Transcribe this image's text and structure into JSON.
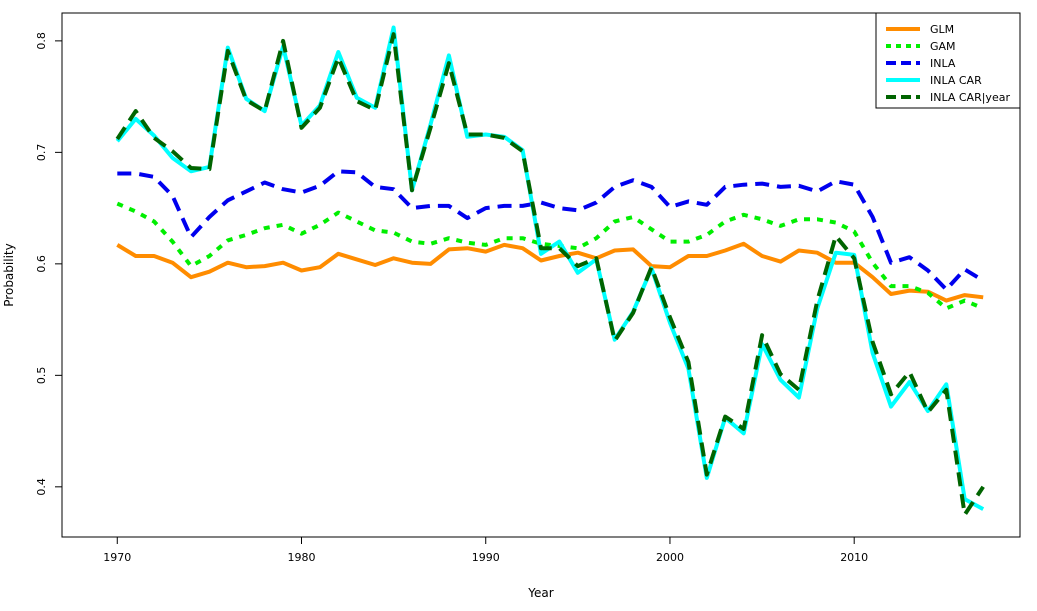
{
  "chart_data": {
    "type": "line",
    "title": "",
    "xlabel": "Year",
    "ylabel": "Probability",
    "xlim": [
      1967,
      2019
    ],
    "ylim": [
      0.355,
      0.825
    ],
    "xticks": [
      1970,
      1980,
      1990,
      2000,
      2010
    ],
    "yticks": [
      0.4,
      0.5,
      0.6,
      0.7,
      0.8
    ],
    "legend": "top-right",
    "x": [
      1970,
      1971,
      1972,
      1973,
      1974,
      1975,
      1976,
      1977,
      1978,
      1979,
      1980,
      1981,
      1982,
      1983,
      1984,
      1985,
      1986,
      1987,
      1988,
      1989,
      1990,
      1991,
      1992,
      1993,
      1994,
      1995,
      1996,
      1997,
      1998,
      1999,
      2000,
      2001,
      2002,
      2003,
      2004,
      2005,
      2006,
      2007,
      2008,
      2009,
      2010,
      2011,
      2012,
      2013,
      2014,
      2015,
      2016,
      2017
    ],
    "series": [
      {
        "name": "GLM",
        "color": "#FF8C00",
        "dash": "solid",
        "values": [
          0.617,
          0.607,
          0.607,
          0.601,
          0.588,
          0.593,
          0.601,
          0.597,
          0.598,
          0.601,
          0.594,
          0.597,
          0.609,
          0.604,
          0.599,
          0.605,
          0.601,
          0.6,
          0.613,
          0.614,
          0.611,
          0.617,
          0.614,
          0.603,
          0.607,
          0.61,
          0.605,
          0.612,
          0.613,
          0.598,
          0.597,
          0.607,
          0.607,
          0.612,
          0.618,
          0.607,
          0.602,
          0.612,
          0.61,
          0.601,
          0.601,
          0.588,
          0.573,
          0.576,
          0.575,
          0.567,
          0.572,
          0.57
        ]
      },
      {
        "name": "GAM",
        "color": "#00EE00",
        "dash": "dotted",
        "values": [
          0.654,
          0.647,
          0.638,
          0.62,
          0.598,
          0.607,
          0.621,
          0.626,
          0.632,
          0.635,
          0.627,
          0.635,
          0.646,
          0.638,
          0.63,
          0.628,
          0.62,
          0.618,
          0.623,
          0.619,
          0.617,
          0.623,
          0.623,
          0.618,
          0.616,
          0.614,
          0.623,
          0.638,
          0.642,
          0.631,
          0.62,
          0.62,
          0.626,
          0.638,
          0.644,
          0.64,
          0.634,
          0.64,
          0.64,
          0.637,
          0.629,
          0.601,
          0.58,
          0.58,
          0.574,
          0.56,
          0.567,
          0.56
        ]
      },
      {
        "name": "INLA",
        "color": "#0000EE",
        "dash": "dashed",
        "values": [
          0.681,
          0.681,
          0.678,
          0.661,
          0.624,
          0.642,
          0.657,
          0.665,
          0.673,
          0.667,
          0.664,
          0.67,
          0.683,
          0.682,
          0.669,
          0.667,
          0.65,
          0.652,
          0.652,
          0.641,
          0.65,
          0.652,
          0.652,
          0.655,
          0.65,
          0.648,
          0.655,
          0.669,
          0.675,
          0.669,
          0.651,
          0.656,
          0.653,
          0.669,
          0.671,
          0.672,
          0.669,
          0.67,
          0.665,
          0.674,
          0.671,
          0.642,
          0.601,
          0.606,
          0.594,
          0.577,
          0.595,
          0.585
        ]
      },
      {
        "name": "INLA CAR",
        "color": "#00FFFF",
        "dash": "solid",
        "values": [
          0.71,
          0.73,
          0.715,
          0.695,
          0.683,
          0.687,
          0.794,
          0.748,
          0.737,
          0.795,
          0.724,
          0.742,
          0.79,
          0.749,
          0.74,
          0.812,
          0.666,
          0.725,
          0.787,
          0.714,
          0.716,
          0.714,
          0.702,
          0.609,
          0.62,
          0.592,
          0.604,
          0.532,
          0.557,
          0.596,
          0.547,
          0.506,
          0.408,
          0.462,
          0.448,
          0.528,
          0.496,
          0.48,
          0.56,
          0.61,
          0.608,
          0.52,
          0.472,
          0.494,
          0.468,
          0.492,
          0.389,
          0.38
        ]
      },
      {
        "name": "INLA CAR|year",
        "color": "#006400",
        "dash": "dashed",
        "values": [
          0.712,
          0.737,
          0.713,
          0.701,
          0.686,
          0.685,
          0.791,
          0.747,
          0.737,
          0.8,
          0.722,
          0.74,
          0.785,
          0.746,
          0.738,
          0.806,
          0.666,
          0.722,
          0.78,
          0.716,
          0.716,
          0.713,
          0.701,
          0.614,
          0.614,
          0.598,
          0.605,
          0.531,
          0.556,
          0.597,
          0.552,
          0.512,
          0.411,
          0.463,
          0.452,
          0.536,
          0.501,
          0.487,
          0.567,
          0.625,
          0.605,
          0.53,
          0.483,
          0.503,
          0.467,
          0.487,
          0.375,
          0.4
        ]
      }
    ]
  }
}
